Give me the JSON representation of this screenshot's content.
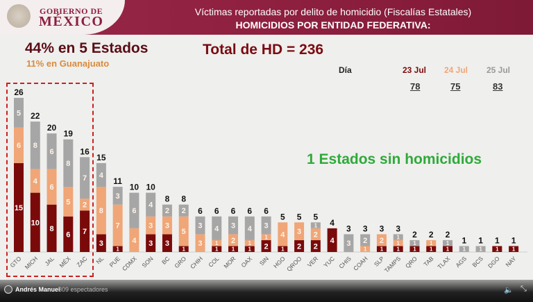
{
  "header": {
    "logo_line1": "GOBIERNO DE",
    "logo_line2": "MÉXICO",
    "title": "Víctimas reportadas por delito de homicidio (Fiscalías Estatales)",
    "subtitle": "HOMICIDIOS POR ENTIDAD FEDERATIVA:"
  },
  "summary": {
    "top5": "44% en 5 Estados",
    "gto": "11% en Guanajuato",
    "total": "Total de HD = 236",
    "no_homicides": "1 Estados sin homicidios"
  },
  "days": {
    "label": "Día",
    "items": [
      {
        "date": "23 Jul",
        "total": "78",
        "color": "#7a0a0a"
      },
      {
        "date": "24 Jul",
        "total": "75",
        "color": "#f0a677"
      },
      {
        "date": "25 Jul",
        "total": "83",
        "color": "#a6a6a6"
      }
    ]
  },
  "video": {
    "user": "Andrés Manuel",
    "views": "309 espectadores",
    "volume_icon": "volume-icon",
    "exit_icon": "exit-fullscreen-icon"
  },
  "chart_data": {
    "type": "bar",
    "stacked": true,
    "categories": [
      "GTO",
      "MICH",
      "JAL",
      "MÉX",
      "ZAC",
      "NL",
      "PUE",
      "CDMX",
      "SON",
      "BC",
      "GRO",
      "CHIH",
      "COL",
      "MOR",
      "OAX",
      "SIN",
      "HGO",
      "QROO",
      "VER",
      "YUC",
      "CHIS",
      "COAH",
      "SLP",
      "TAMPS",
      "QRO",
      "TAB",
      "TLAX",
      "AGS",
      "BCS",
      "DGO",
      "NAY"
    ],
    "series": [
      {
        "name": "23 Jul",
        "color": "#7a0a0a",
        "values": [
          15,
          10,
          8,
          6,
          7,
          3,
          1,
          0,
          3,
          3,
          1,
          0,
          1,
          1,
          1,
          2,
          1,
          2,
          2,
          4,
          0,
          0,
          1,
          1,
          1,
          1,
          1,
          0,
          0,
          1,
          1
        ]
      },
      {
        "name": "24 Jul",
        "color": "#f0a677",
        "values": [
          6,
          4,
          6,
          5,
          2,
          8,
          7,
          4,
          3,
          3,
          5,
          3,
          1,
          2,
          1,
          1,
          4,
          3,
          2,
          0,
          0,
          1,
          2,
          1,
          0,
          1,
          0,
          0,
          0,
          0,
          0
        ]
      },
      {
        "name": "25 Jul",
        "color": "#a6a6a6",
        "values": [
          5,
          8,
          6,
          8,
          7,
          4,
          3,
          6,
          4,
          2,
          2,
          3,
          4,
          3,
          4,
          3,
          0,
          0,
          1,
          0,
          3,
          2,
          0,
          1,
          1,
          0,
          1,
          1,
          1,
          0,
          0
        ]
      }
    ],
    "totals": [
      26,
      22,
      20,
      19,
      16,
      15,
      11,
      10,
      10,
      8,
      8,
      6,
      6,
      6,
      6,
      6,
      5,
      5,
      5,
      4,
      3,
      3,
      3,
      3,
      2,
      2,
      2,
      1,
      1,
      1,
      1
    ],
    "highlight": [
      "GTO",
      "MICH",
      "JAL",
      "MÉX",
      "ZAC"
    ],
    "grid": false
  }
}
